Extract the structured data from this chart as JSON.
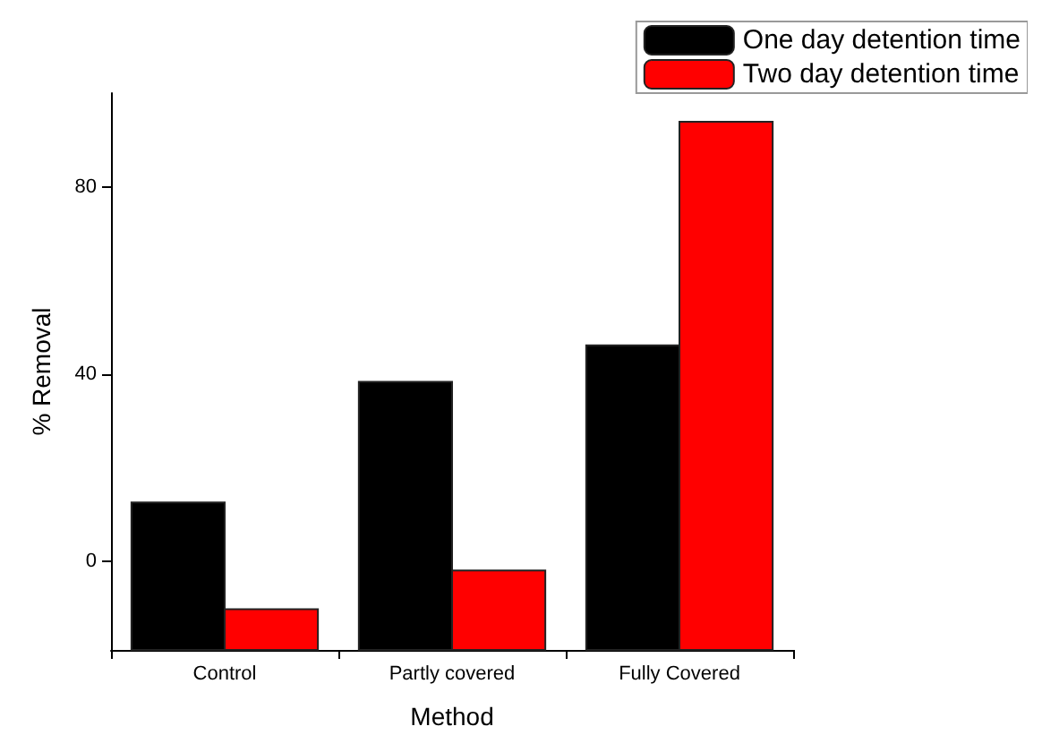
{
  "chart_data": {
    "type": "bar",
    "xlabel": "Method",
    "ylabel": "% Removal",
    "categories": [
      "Control",
      "Partly covered",
      "Fully Covered"
    ],
    "series": [
      {
        "name": "One day detention time",
        "color": "#000000",
        "base": [
          -19,
          -19,
          -19
        ],
        "values": [
          31.5,
          57.3,
          65.1
        ]
      },
      {
        "name": "Two day detention time",
        "color": "#ff0000",
        "base": [
          -19,
          -19,
          -19
        ],
        "values": [
          8.7,
          17,
          112.9
        ]
      }
    ],
    "ylim": [
      -19,
      100
    ],
    "yticks": [
      0,
      40,
      80
    ],
    "grid": false,
    "legend": "top right"
  }
}
